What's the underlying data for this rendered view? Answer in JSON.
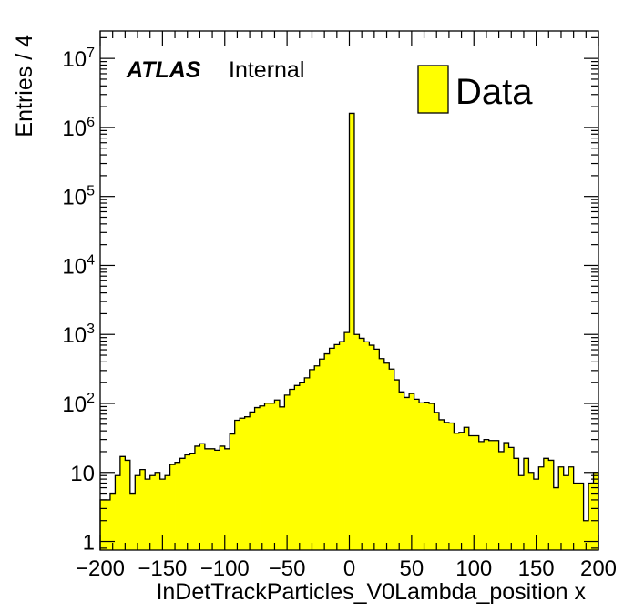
{
  "chart_data": {
    "type": "bar",
    "title": "",
    "xlabel": "InDetTrackParticles_V0Lambda_position x",
    "ylabel": "Entries / 4",
    "yscale": "log",
    "xlim": [
      -200,
      200
    ],
    "ylim": [
      0.75,
      25000000
    ],
    "bin_width": 4,
    "grid": false,
    "legend_position": "top-right",
    "fill_color": "#ffff00",
    "line_color": "#000000",
    "x_tick_labels": [
      "−200",
      "−150",
      "−100",
      "−50",
      "0",
      "50",
      "100",
      "150",
      "200"
    ],
    "x_tick_values": [
      -200,
      -150,
      -100,
      -50,
      0,
      50,
      100,
      150,
      200
    ],
    "y_tick_values": [
      1,
      10,
      100,
      1000,
      10000,
      100000,
      1000000,
      10000000
    ],
    "y_tick_labels": [
      {
        "base": "1",
        "exp": ""
      },
      {
        "base": "10",
        "exp": ""
      },
      {
        "base": "10",
        "exp": "2"
      },
      {
        "base": "10",
        "exp": "3"
      },
      {
        "base": "10",
        "exp": "4"
      },
      {
        "base": "10",
        "exp": "5"
      },
      {
        "base": "10",
        "exp": "6"
      },
      {
        "base": "10",
        "exp": "7"
      }
    ],
    "series": [
      {
        "name": "Data",
        "x": [
          -198,
          -194,
          -190,
          -186,
          -182,
          -178,
          -174,
          -170,
          -166,
          -162,
          -158,
          -154,
          -150,
          -146,
          -142,
          -138,
          -134,
          -130,
          -126,
          -122,
          -118,
          -114,
          -110,
          -106,
          -102,
          -98,
          -94,
          -90,
          -86,
          -82,
          -78,
          -74,
          -70,
          -66,
          -62,
          -58,
          -54,
          -50,
          -46,
          -42,
          -38,
          -34,
          -30,
          -26,
          -22,
          -18,
          -14,
          -10,
          -6,
          -2,
          2,
          6,
          10,
          14,
          18,
          22,
          26,
          30,
          34,
          38,
          42,
          46,
          50,
          54,
          58,
          62,
          66,
          70,
          74,
          78,
          82,
          86,
          90,
          94,
          98,
          102,
          106,
          110,
          114,
          118,
          122,
          126,
          130,
          134,
          138,
          142,
          146,
          150,
          154,
          158,
          162,
          166,
          170,
          174,
          178,
          182,
          186,
          190,
          194,
          198
        ],
        "values": [
          4,
          4,
          5,
          9,
          17,
          15,
          5,
          9,
          11,
          8,
          9,
          10,
          8,
          9,
          13,
          14,
          16,
          18,
          19,
          24,
          26,
          22,
          22,
          21,
          24,
          22,
          36,
          57,
          61,
          64,
          75,
          87,
          92,
          101,
          101,
          112,
          89,
          132,
          160,
          182,
          199,
          235,
          309,
          350,
          440,
          523,
          631,
          712,
          785,
          1067,
          1600000,
          1000,
          880,
          781,
          698,
          612,
          447,
          384,
          315,
          220,
          147,
          122,
          139,
          115,
          102,
          104,
          100,
          74,
          58,
          53,
          52,
          37,
          38,
          45,
          34,
          34,
          28,
          30,
          29,
          29,
          20,
          27,
          23,
          16,
          9,
          16,
          10,
          8,
          12,
          16,
          15,
          6,
          12,
          9,
          12,
          7,
          7,
          2,
          7,
          10
        ]
      }
    ],
    "annotations": {
      "experiment": "ATLAS",
      "status": "Internal"
    }
  }
}
